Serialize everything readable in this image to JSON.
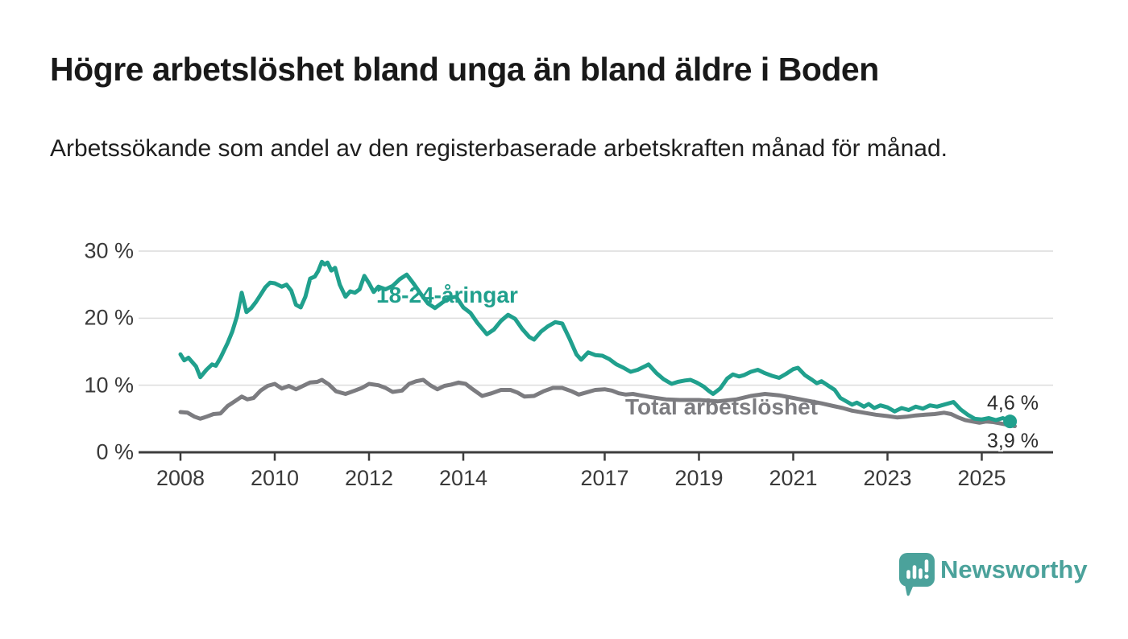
{
  "header": {
    "title": "Högre arbetslöshet bland unga än bland äldre i Boden",
    "subtitle": "Arbetssökande som andel av den registerbaserade arbetskraften månad för månad."
  },
  "footer": {
    "brand": "Newsworthy"
  },
  "colors": {
    "young_series": "#20a08d",
    "total_series": "#7c7c80",
    "brand": "#4ba29b",
    "grid": "#dcdcdc",
    "axis": "#3d3d3d",
    "value_label": "#2b2b2b"
  },
  "chart_data": {
    "type": "line",
    "title": "Högre arbetslöshet bland unga än bland äldre i Boden",
    "xlabel": "",
    "ylabel": "Arbetssökande som andel av den registerbaserade arbetskraften",
    "grid": "horizontal",
    "legend_position": "inline-labels",
    "y_axis": {
      "unit": "%",
      "range": [
        0,
        30
      ],
      "ticks": [
        {
          "value": 30,
          "label": "30 %"
        },
        {
          "value": 20,
          "label": "20 %"
        },
        {
          "value": 10,
          "label": "10 %"
        },
        {
          "value": 0,
          "label": "0 %"
        }
      ]
    },
    "x_axis": {
      "unit": "year (monthly data)",
      "range": [
        2007.1,
        2026.5
      ],
      "ticks": [
        {
          "year": 2008,
          "label": "2008"
        },
        {
          "year": 2010,
          "label": "2010"
        },
        {
          "year": 2012,
          "label": "2012"
        },
        {
          "year": 2014,
          "label": "2014"
        },
        {
          "year": 2017,
          "label": "2017"
        },
        {
          "year": 2019,
          "label": "2019"
        },
        {
          "year": 2021,
          "label": "2021"
        },
        {
          "year": 2023,
          "label": "2023"
        },
        {
          "year": 2025,
          "label": "2025"
        }
      ]
    },
    "series": [
      {
        "name": "18-24-åringar",
        "color": "#20a08d",
        "end_label": "4,6 %",
        "end_value": 4.6,
        "end_dot": true,
        "points": [
          [
            2008.0,
            14.6
          ],
          [
            2008.08,
            13.7
          ],
          [
            2008.17,
            14.1
          ],
          [
            2008.33,
            12.8
          ],
          [
            2008.42,
            11.2
          ],
          [
            2008.55,
            12.3
          ],
          [
            2008.67,
            13.1
          ],
          [
            2008.75,
            12.9
          ],
          [
            2008.85,
            14.1
          ],
          [
            2009.0,
            16.3
          ],
          [
            2009.1,
            18.0
          ],
          [
            2009.2,
            20.3
          ],
          [
            2009.3,
            23.8
          ],
          [
            2009.4,
            20.9
          ],
          [
            2009.5,
            21.5
          ],
          [
            2009.6,
            22.4
          ],
          [
            2009.7,
            23.5
          ],
          [
            2009.8,
            24.6
          ],
          [
            2009.9,
            25.3
          ],
          [
            2010.0,
            25.2
          ],
          [
            2010.15,
            24.7
          ],
          [
            2010.25,
            25.0
          ],
          [
            2010.35,
            24.1
          ],
          [
            2010.45,
            22.0
          ],
          [
            2010.55,
            21.6
          ],
          [
            2010.65,
            23.2
          ],
          [
            2010.75,
            25.9
          ],
          [
            2010.85,
            26.2
          ],
          [
            2010.92,
            27.0
          ],
          [
            2011.0,
            28.4
          ],
          [
            2011.06,
            28.0
          ],
          [
            2011.12,
            28.3
          ],
          [
            2011.2,
            27.1
          ],
          [
            2011.28,
            27.5
          ],
          [
            2011.38,
            25.0
          ],
          [
            2011.5,
            23.2
          ],
          [
            2011.6,
            24.0
          ],
          [
            2011.7,
            23.8
          ],
          [
            2011.8,
            24.3
          ],
          [
            2011.9,
            26.3
          ],
          [
            2012.0,
            25.2
          ],
          [
            2012.1,
            23.9
          ],
          [
            2012.2,
            24.7
          ],
          [
            2012.35,
            24.3
          ],
          [
            2012.5,
            24.8
          ],
          [
            2012.65,
            25.8
          ],
          [
            2012.8,
            26.5
          ],
          [
            2012.95,
            25.1
          ],
          [
            2013.1,
            23.6
          ],
          [
            2013.25,
            22.2
          ],
          [
            2013.4,
            21.5
          ],
          [
            2013.55,
            22.3
          ],
          [
            2013.7,
            23.0
          ],
          [
            2013.85,
            23.2
          ],
          [
            2014.0,
            21.6
          ],
          [
            2014.15,
            20.8
          ],
          [
            2014.3,
            19.3
          ],
          [
            2014.5,
            17.6
          ],
          [
            2014.65,
            18.3
          ],
          [
            2014.8,
            19.6
          ],
          [
            2014.95,
            20.5
          ],
          [
            2015.1,
            19.9
          ],
          [
            2015.25,
            18.4
          ],
          [
            2015.4,
            17.2
          ],
          [
            2015.5,
            16.8
          ],
          [
            2015.65,
            18.0
          ],
          [
            2015.8,
            18.8
          ],
          [
            2015.95,
            19.4
          ],
          [
            2016.1,
            19.2
          ],
          [
            2016.25,
            17.0
          ],
          [
            2016.4,
            14.6
          ],
          [
            2016.5,
            13.8
          ],
          [
            2016.65,
            14.9
          ],
          [
            2016.8,
            14.5
          ],
          [
            2016.95,
            14.4
          ],
          [
            2017.1,
            13.9
          ],
          [
            2017.25,
            13.1
          ],
          [
            2017.4,
            12.6
          ],
          [
            2017.55,
            12.0
          ],
          [
            2017.7,
            12.3
          ],
          [
            2017.85,
            12.8
          ],
          [
            2017.93,
            13.1
          ],
          [
            2018.1,
            11.8
          ],
          [
            2018.25,
            10.9
          ],
          [
            2018.42,
            10.2
          ],
          [
            2018.55,
            10.5
          ],
          [
            2018.7,
            10.7
          ],
          [
            2018.82,
            10.8
          ],
          [
            2018.95,
            10.4
          ],
          [
            2019.1,
            9.8
          ],
          [
            2019.2,
            9.2
          ],
          [
            2019.3,
            8.7
          ],
          [
            2019.45,
            9.5
          ],
          [
            2019.6,
            11.0
          ],
          [
            2019.72,
            11.6
          ],
          [
            2019.85,
            11.3
          ],
          [
            2019.95,
            11.5
          ],
          [
            2020.1,
            12.0
          ],
          [
            2020.25,
            12.3
          ],
          [
            2020.4,
            11.8
          ],
          [
            2020.55,
            11.4
          ],
          [
            2020.7,
            11.1
          ],
          [
            2020.85,
            11.7
          ],
          [
            2021.0,
            12.4
          ],
          [
            2021.1,
            12.6
          ],
          [
            2021.25,
            11.5
          ],
          [
            2021.4,
            10.8
          ],
          [
            2021.5,
            10.3
          ],
          [
            2021.6,
            10.6
          ],
          [
            2021.75,
            9.9
          ],
          [
            2021.88,
            9.3
          ],
          [
            2022.0,
            8.1
          ],
          [
            2022.15,
            7.5
          ],
          [
            2022.25,
            7.1
          ],
          [
            2022.35,
            7.4
          ],
          [
            2022.5,
            6.8
          ],
          [
            2022.6,
            7.2
          ],
          [
            2022.72,
            6.6
          ],
          [
            2022.85,
            7.0
          ],
          [
            2023.0,
            6.7
          ],
          [
            2023.15,
            6.1
          ],
          [
            2023.3,
            6.6
          ],
          [
            2023.45,
            6.3
          ],
          [
            2023.6,
            6.8
          ],
          [
            2023.75,
            6.5
          ],
          [
            2023.9,
            7.0
          ],
          [
            2024.05,
            6.8
          ],
          [
            2024.2,
            7.1
          ],
          [
            2024.4,
            7.5
          ],
          [
            2024.55,
            6.4
          ],
          [
            2024.7,
            5.6
          ],
          [
            2024.85,
            5.0
          ],
          [
            2025.0,
            4.9
          ],
          [
            2025.15,
            5.1
          ],
          [
            2025.3,
            4.8
          ],
          [
            2025.45,
            5.1
          ],
          [
            2025.55,
            4.7
          ],
          [
            2025.6,
            4.6
          ]
        ]
      },
      {
        "name": "Total arbetslöshet",
        "color": "#7c7c80",
        "end_label": "3,9 %",
        "end_value": 3.9,
        "end_dot": false,
        "points": [
          [
            2008.0,
            6.0
          ],
          [
            2008.15,
            5.9
          ],
          [
            2008.3,
            5.3
          ],
          [
            2008.42,
            5.0
          ],
          [
            2008.55,
            5.3
          ],
          [
            2008.7,
            5.7
          ],
          [
            2008.85,
            5.8
          ],
          [
            2009.0,
            6.9
          ],
          [
            2009.15,
            7.6
          ],
          [
            2009.3,
            8.3
          ],
          [
            2009.42,
            7.9
          ],
          [
            2009.55,
            8.1
          ],
          [
            2009.7,
            9.2
          ],
          [
            2009.85,
            9.9
          ],
          [
            2010.0,
            10.2
          ],
          [
            2010.15,
            9.5
          ],
          [
            2010.3,
            9.9
          ],
          [
            2010.45,
            9.4
          ],
          [
            2010.6,
            9.9
          ],
          [
            2010.75,
            10.4
          ],
          [
            2010.9,
            10.5
          ],
          [
            2011.0,
            10.8
          ],
          [
            2011.15,
            10.1
          ],
          [
            2011.3,
            9.1
          ],
          [
            2011.5,
            8.7
          ],
          [
            2011.7,
            9.2
          ],
          [
            2011.85,
            9.6
          ],
          [
            2012.0,
            10.2
          ],
          [
            2012.2,
            10.0
          ],
          [
            2012.35,
            9.6
          ],
          [
            2012.5,
            9.0
          ],
          [
            2012.7,
            9.2
          ],
          [
            2012.85,
            10.2
          ],
          [
            2013.0,
            10.6
          ],
          [
            2013.15,
            10.8
          ],
          [
            2013.3,
            10.0
          ],
          [
            2013.45,
            9.4
          ],
          [
            2013.6,
            9.9
          ],
          [
            2013.75,
            10.1
          ],
          [
            2013.9,
            10.4
          ],
          [
            2014.05,
            10.2
          ],
          [
            2014.2,
            9.4
          ],
          [
            2014.4,
            8.4
          ],
          [
            2014.6,
            8.8
          ],
          [
            2014.8,
            9.3
          ],
          [
            2015.0,
            9.3
          ],
          [
            2015.15,
            8.9
          ],
          [
            2015.3,
            8.3
          ],
          [
            2015.5,
            8.4
          ],
          [
            2015.7,
            9.1
          ],
          [
            2015.9,
            9.6
          ],
          [
            2016.1,
            9.6
          ],
          [
            2016.3,
            9.1
          ],
          [
            2016.45,
            8.6
          ],
          [
            2016.6,
            8.9
          ],
          [
            2016.8,
            9.3
          ],
          [
            2017.0,
            9.4
          ],
          [
            2017.15,
            9.2
          ],
          [
            2017.3,
            8.8
          ],
          [
            2017.45,
            8.6
          ],
          [
            2017.6,
            8.7
          ],
          [
            2017.75,
            8.5
          ],
          [
            2018.0,
            8.2
          ],
          [
            2018.3,
            7.9
          ],
          [
            2018.6,
            7.8
          ],
          [
            2019.0,
            7.8
          ],
          [
            2019.4,
            7.6
          ],
          [
            2019.8,
            7.9
          ],
          [
            2020.1,
            8.4
          ],
          [
            2020.4,
            8.7
          ],
          [
            2020.7,
            8.5
          ],
          [
            2021.0,
            8.1
          ],
          [
            2021.3,
            7.7
          ],
          [
            2021.6,
            7.3
          ],
          [
            2021.85,
            6.9
          ],
          [
            2022.05,
            6.6
          ],
          [
            2022.25,
            6.2
          ],
          [
            2022.5,
            5.9
          ],
          [
            2022.75,
            5.6
          ],
          [
            2023.0,
            5.4
          ],
          [
            2023.2,
            5.2
          ],
          [
            2023.4,
            5.3
          ],
          [
            2023.6,
            5.5
          ],
          [
            2023.8,
            5.6
          ],
          [
            2024.0,
            5.7
          ],
          [
            2024.2,
            5.9
          ],
          [
            2024.35,
            5.7
          ],
          [
            2024.5,
            5.2
          ],
          [
            2024.65,
            4.8
          ],
          [
            2024.8,
            4.6
          ],
          [
            2024.95,
            4.4
          ],
          [
            2025.1,
            4.6
          ],
          [
            2025.25,
            4.5
          ],
          [
            2025.4,
            4.3
          ],
          [
            2025.55,
            4.1
          ],
          [
            2025.7,
            3.9
          ]
        ]
      }
    ]
  }
}
